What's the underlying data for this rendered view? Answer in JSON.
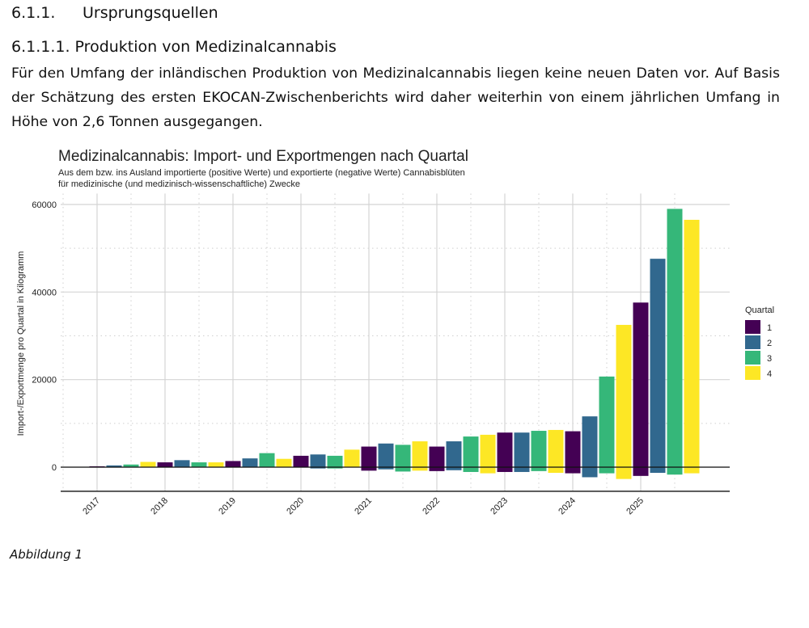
{
  "heading1": {
    "number": "6.1.1.",
    "title": "Ursprungsquellen"
  },
  "heading2": "6.1.1.1. Produktion von Medizinalcannabis",
  "paragraph": "Für den Umfang der inländischen Produktion von Medizinalcannabis liegen keine neuen Daten vor. Auf Basis der Schätzung des ersten EKOCAN-Zwischenberichts wird daher weiterhin von einem jährlichen Umfang in Höhe von 2,6 Tonnen ausgegangen.",
  "caption": "Abbildung 1",
  "chart_data": {
    "type": "bar",
    "title": "Medizinalcannabis: Import- und Exportmengen nach Quartal",
    "subtitle": [
      "Aus dem bzw. ins Ausland importierte (positive Werte) und exportierte (negative Werte) Cannabisblüten",
      "für medizinische (und medizinisch-wissenschaftliche) Zwecke"
    ],
    "xlabel": "",
    "ylabel": "Import-/Exportmenge pro Quartal in Kilogramm",
    "ylim": [
      -5500,
      62500
    ],
    "yticks": [
      "0",
      "20000",
      "40000",
      "60000"
    ],
    "ytick_values": [
      0,
      20000,
      40000,
      60000
    ],
    "xticks": [
      "2017",
      "2018",
      "2019",
      "2020",
      "2021",
      "2022",
      "2023",
      "2024",
      "2025"
    ],
    "grid": true,
    "legend": {
      "title": "Quartal",
      "position": "right",
      "entries": [
        "1",
        "2",
        "3",
        "4"
      ]
    },
    "colors": {
      "1": "#440154",
      "2": "#31688E",
      "3": "#35B779",
      "4": "#FDE725"
    },
    "years": [
      2017,
      2018,
      2019,
      2020,
      2021,
      2022,
      2023,
      2024,
      2025
    ],
    "series": [
      {
        "name": "Import",
        "values": [
          [
            200,
            400,
            600,
            1200
          ],
          [
            1100,
            1600,
            1100,
            1100
          ],
          [
            1400,
            2000,
            3200,
            1900
          ],
          [
            2600,
            2900,
            2600,
            4000
          ],
          [
            4700,
            5400,
            5100,
            5900
          ],
          [
            4700,
            5900,
            7000,
            7400
          ],
          [
            7900,
            7900,
            8300,
            8500
          ],
          [
            8200,
            11600,
            20700,
            32500
          ],
          [
            37600,
            47600,
            59000,
            56500
          ]
        ]
      },
      {
        "name": "Export",
        "values": [
          [
            0,
            0,
            0,
            0
          ],
          [
            0,
            0,
            0,
            0
          ],
          [
            0,
            0,
            0,
            0
          ],
          [
            0,
            -300,
            -300,
            0
          ],
          [
            -800,
            -500,
            -1000,
            -800
          ],
          [
            -900,
            -700,
            -1100,
            -1400
          ],
          [
            -1100,
            -1100,
            -900,
            -1300
          ],
          [
            -1400,
            -2300,
            -1400,
            -2700
          ],
          [
            -2000,
            -1300,
            -1700,
            -1400
          ]
        ]
      }
    ]
  }
}
